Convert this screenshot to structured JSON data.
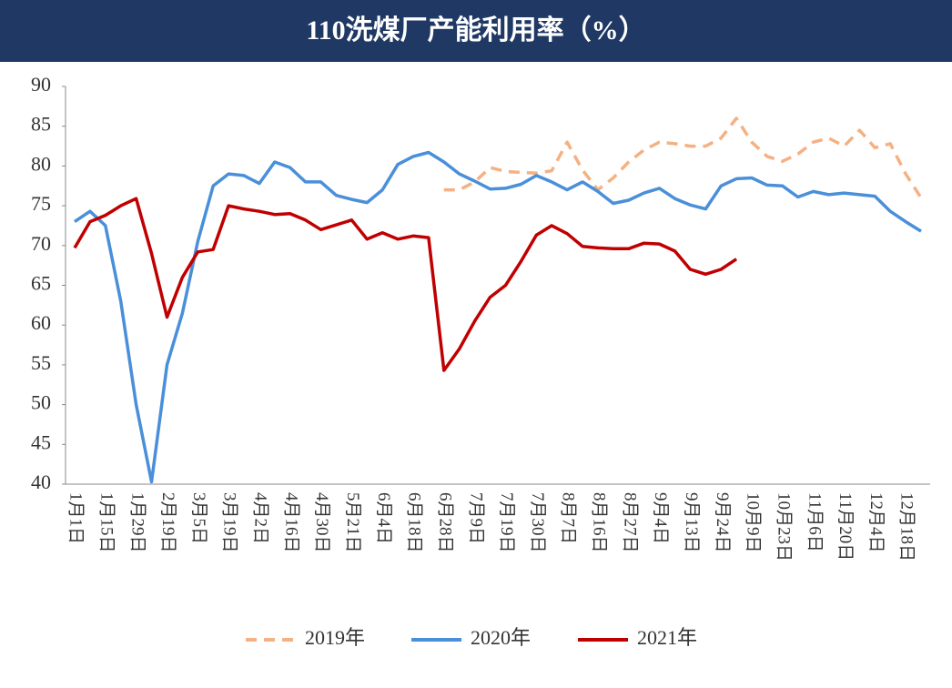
{
  "chart_data": {
    "type": "line",
    "title": "110洗煤厂产能利用率（%）",
    "categories": [
      "1月1日",
      null,
      "1月15日",
      null,
      "1月29日",
      null,
      "2月19日",
      null,
      "3月5日",
      null,
      "3月19日",
      null,
      "4月2日",
      null,
      "4月16日",
      null,
      "4月30日",
      null,
      "5月21日",
      null,
      "6月4日",
      null,
      "6月18日",
      null,
      "6月28日",
      null,
      "7月9日",
      null,
      "7月19日",
      null,
      "7月30日",
      null,
      "8月7日",
      null,
      "8月16日",
      null,
      "8月27日",
      null,
      "9月4日",
      null,
      "9月13日",
      null,
      "9月24日",
      null,
      "10月9日",
      null,
      "10月23日",
      null,
      "11月6日",
      null,
      "11月20日",
      null,
      "12月4日",
      null,
      "12月18日",
      null
    ],
    "series": [
      {
        "name": "2019年",
        "color": "#f4b183",
        "dashed": true,
        "values": [
          null,
          null,
          null,
          null,
          null,
          null,
          null,
          null,
          null,
          null,
          null,
          null,
          null,
          null,
          null,
          null,
          null,
          null,
          null,
          null,
          null,
          null,
          null,
          null,
          77,
          77,
          78,
          79.8,
          79.3,
          79.2,
          79.1,
          79.4,
          83,
          79.5,
          77,
          78.5,
          80.5,
          82,
          83,
          82.8,
          82.5,
          82.5,
          83.5,
          86,
          83,
          81.2,
          80.6,
          81.5,
          83,
          83.5,
          82.5,
          84.5,
          82.3,
          82.8,
          79,
          76
        ]
      },
      {
        "name": "2020年",
        "color": "#4a8fd9",
        "dashed": false,
        "values": [
          73,
          74.3,
          72.5,
          63,
          50,
          40.3,
          55,
          61.5,
          70.5,
          77.5,
          79,
          78.8,
          77.8,
          80.5,
          79.8,
          78,
          78,
          76.3,
          75.8,
          75.4,
          77,
          80.2,
          81.2,
          81.7,
          80.5,
          79,
          78.1,
          77.1,
          77.2,
          77.7,
          78.8,
          78,
          77,
          78,
          76.8,
          75.3,
          75.7,
          76.6,
          77.2,
          75.9,
          75.1,
          74.6,
          77.5,
          78.4,
          78.5,
          77.6,
          77.5,
          76.1,
          76.8,
          76.4,
          76.6,
          76.4,
          76.2,
          74.3,
          73,
          71.8
        ]
      },
      {
        "name": "2021年",
        "color": "#c00000",
        "dashed": false,
        "values": [
          69.7,
          73,
          73.8,
          75,
          75.9,
          69,
          61,
          66,
          69.2,
          69.5,
          75,
          74.6,
          74.3,
          73.9,
          74,
          73.2,
          72,
          72.6,
          73.2,
          70.8,
          71.6,
          70.8,
          71.2,
          71,
          54.3,
          57,
          60.5,
          63.5,
          65,
          68,
          71.3,
          72.5,
          71.5,
          69.9,
          69.7,
          69.6,
          69.6,
          70.3,
          70.2,
          69.3,
          67,
          66.4,
          67,
          68.3,
          null,
          null,
          null,
          null,
          null,
          null,
          null,
          null,
          null,
          null,
          null,
          null
        ]
      }
    ],
    "ylim": [
      40,
      90
    ],
    "yticks": [
      40,
      45,
      50,
      55,
      60,
      65,
      70,
      75,
      80,
      85,
      90
    ],
    "grid": false
  }
}
